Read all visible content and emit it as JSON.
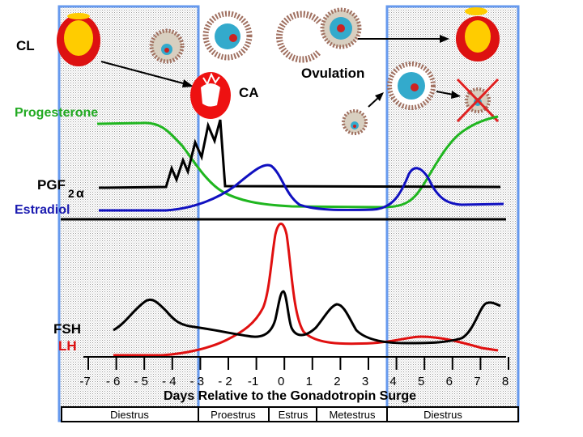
{
  "labels": {
    "cl": "CL",
    "ca": "CA",
    "ovulation": "Ovulation",
    "progesterone": "Progesterone",
    "pgf_main": "PGF",
    "pgf_sub": "2",
    "pgf_greek": "α",
    "estradiol": "Estradiol",
    "fsh": "FSH",
    "lh": "LH",
    "x_axis_title": "Days Relative to the Gonadotropin Surge"
  },
  "x_ticks": [
    "-7",
    "- 6",
    "- 5",
    "- 4",
    "- 3",
    "- 2",
    "-1",
    "0",
    "1",
    "2",
    "3",
    "4",
    "5",
    "6",
    "7",
    "8"
  ],
  "phases": [
    "Diestrus",
    "Proestrus",
    "Estrus",
    "Metestrus",
    "Diestrus"
  ],
  "colors": {
    "progesterone": "#1fb61f",
    "estradiol": "#1010c0",
    "lh": "#e01010",
    "fsh": "#000000",
    "pgf": "#000000",
    "highlight_border": "#6699ee",
    "progesterone_label": "#22aa22",
    "estradiol_label": "#1a1ab0",
    "lh_label": "#dd1111",
    "ca_cell": "#ff0000",
    "cl_yellow": "#ffcc00",
    "cl_red": "#dd1111",
    "follicle_blue": "#33aacc",
    "follicle_ring": "#a07060"
  }
}
